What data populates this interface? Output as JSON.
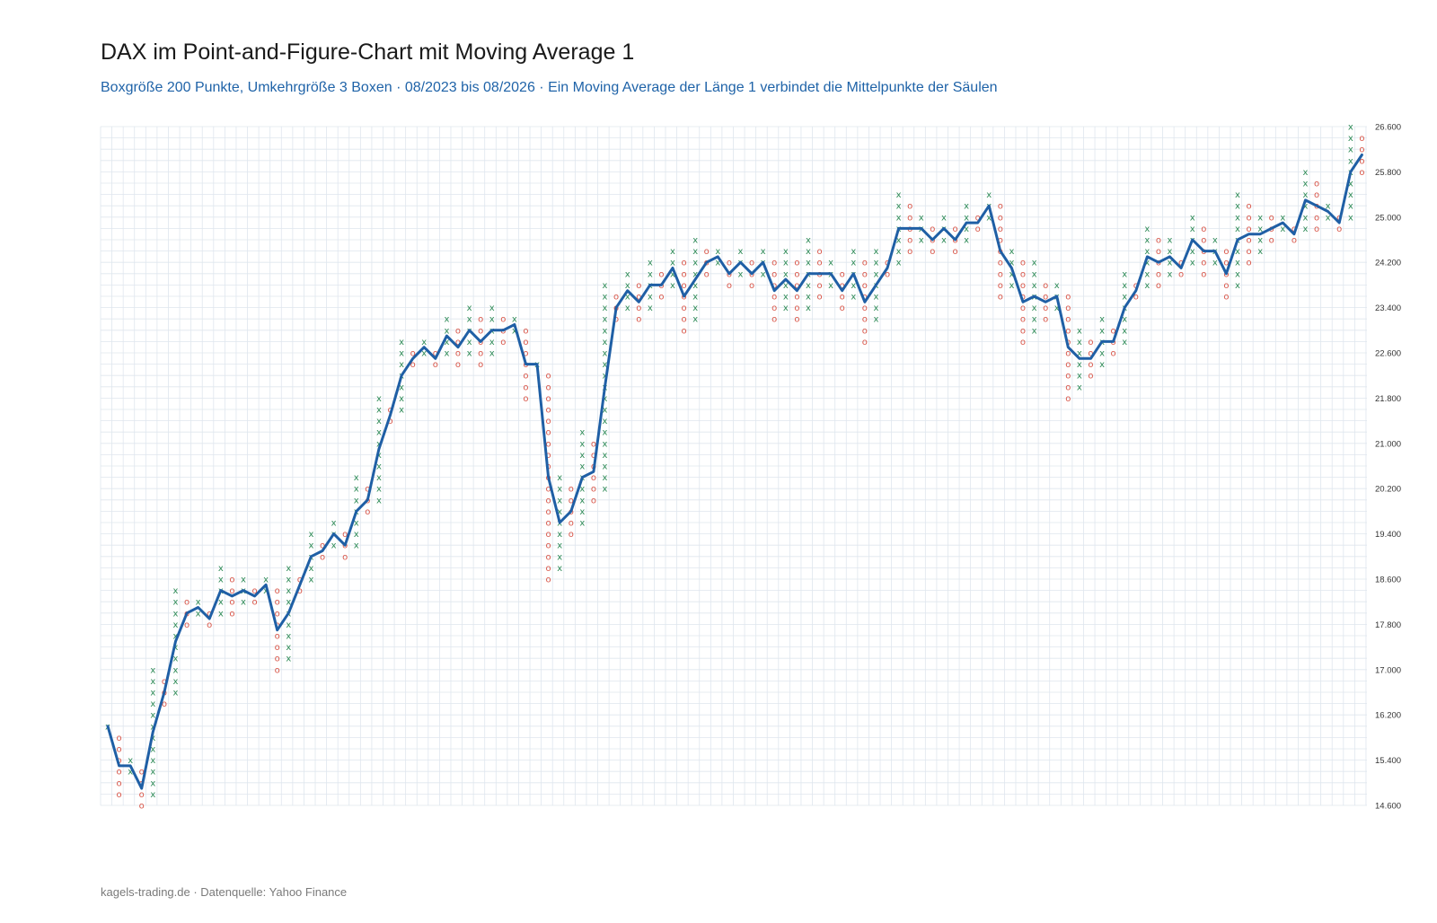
{
  "title": "DAX im Point-and-Figure-Chart mit Moving Average 1",
  "subtitle": "Boxgröße 200 Punkte, Umkehrgröße 3 Boxen · 08/2023 bis 08/2026 · Ein Moving Average der Länge 1 verbindet die Mittelpunkte der Säulen",
  "footer": "kagels-trading.de · Datenquelle: Yahoo Finance",
  "colors": {
    "x_mark": "#2e8b57",
    "o_mark": "#d9574a",
    "line": "#1f5fa5",
    "grid": "#dfe6ee"
  },
  "chart_data": {
    "type": "point-and-figure",
    "box_size": 200,
    "reversal_boxes": 3,
    "ylim": [
      14600,
      26600
    ],
    "y_ticks": [
      "14.600",
      "15.400",
      "16.200",
      "17.000",
      "17.800",
      "18.600",
      "19.400",
      "20.200",
      "21.000",
      "21.800",
      "22.600",
      "23.400",
      "24.200",
      "25.000",
      "25.800",
      "26.600"
    ],
    "y_axis_side": "right",
    "grid": true,
    "columns": [
      {
        "type": "X",
        "low": 16000,
        "high": 16000
      },
      {
        "type": "O",
        "low": 14800,
        "high": 15800
      },
      {
        "type": "X",
        "low": 15200,
        "high": 15400
      },
      {
        "type": "O",
        "low": 14600,
        "high": 15200
      },
      {
        "type": "X",
        "low": 14800,
        "high": 17000
      },
      {
        "type": "O",
        "low": 16400,
        "high": 16800
      },
      {
        "type": "X",
        "low": 16600,
        "high": 18400
      },
      {
        "type": "O",
        "low": 17800,
        "high": 18200
      },
      {
        "type": "X",
        "low": 18000,
        "high": 18200
      },
      {
        "type": "O",
        "low": 17800,
        "high": 18000
      },
      {
        "type": "X",
        "low": 18000,
        "high": 18800
      },
      {
        "type": "O",
        "low": 18000,
        "high": 18600
      },
      {
        "type": "X",
        "low": 18200,
        "high": 18600
      },
      {
        "type": "O",
        "low": 18200,
        "high": 18400
      },
      {
        "type": "X",
        "low": 18400,
        "high": 18600
      },
      {
        "type": "O",
        "low": 17000,
        "high": 18400
      },
      {
        "type": "X",
        "low": 17200,
        "high": 18800
      },
      {
        "type": "O",
        "low": 18400,
        "high": 18600
      },
      {
        "type": "X",
        "low": 18600,
        "high": 19400
      },
      {
        "type": "O",
        "low": 19000,
        "high": 19200
      },
      {
        "type": "X",
        "low": 19200,
        "high": 19600
      },
      {
        "type": "O",
        "low": 19000,
        "high": 19400
      },
      {
        "type": "X",
        "low": 19200,
        "high": 20400
      },
      {
        "type": "O",
        "low": 19800,
        "high": 20200
      },
      {
        "type": "X",
        "low": 20000,
        "high": 21800
      },
      {
        "type": "O",
        "low": 21400,
        "high": 21600
      },
      {
        "type": "X",
        "low": 21600,
        "high": 22800
      },
      {
        "type": "O",
        "low": 22400,
        "high": 22600
      },
      {
        "type": "X",
        "low": 22600,
        "high": 22800
      },
      {
        "type": "O",
        "low": 22400,
        "high": 22600
      },
      {
        "type": "X",
        "low": 22600,
        "high": 23200
      },
      {
        "type": "O",
        "low": 22400,
        "high": 23000
      },
      {
        "type": "X",
        "low": 22600,
        "high": 23400
      },
      {
        "type": "O",
        "low": 22400,
        "high": 23200
      },
      {
        "type": "X",
        "low": 22600,
        "high": 23400
      },
      {
        "type": "O",
        "low": 22800,
        "high": 23200
      },
      {
        "type": "X",
        "low": 23000,
        "high": 23200
      },
      {
        "type": "O",
        "low": 21800,
        "high": 23000
      },
      {
        "type": "X",
        "low": 22400,
        "high": 22400
      },
      {
        "type": "O",
        "low": 18600,
        "high": 22200
      },
      {
        "type": "X",
        "low": 18800,
        "high": 20400
      },
      {
        "type": "O",
        "low": 19400,
        "high": 20200
      },
      {
        "type": "X",
        "low": 19600,
        "high": 21200
      },
      {
        "type": "O",
        "low": 20000,
        "high": 21000
      },
      {
        "type": "X",
        "low": 20200,
        "high": 23800
      },
      {
        "type": "O",
        "low": 23200,
        "high": 23600
      },
      {
        "type": "X",
        "low": 23400,
        "high": 24000
      },
      {
        "type": "O",
        "low": 23200,
        "high": 23800
      },
      {
        "type": "X",
        "low": 23400,
        "high": 24200
      },
      {
        "type": "O",
        "low": 23600,
        "high": 24000
      },
      {
        "type": "X",
        "low": 23800,
        "high": 24400
      },
      {
        "type": "O",
        "low": 23000,
        "high": 24200
      },
      {
        "type": "X",
        "low": 23200,
        "high": 24600
      },
      {
        "type": "O",
        "low": 24000,
        "high": 24400
      },
      {
        "type": "X",
        "low": 24200,
        "high": 24400
      },
      {
        "type": "O",
        "low": 23800,
        "high": 24200
      },
      {
        "type": "X",
        "low": 24000,
        "high": 24400
      },
      {
        "type": "O",
        "low": 23800,
        "high": 24200
      },
      {
        "type": "X",
        "low": 24000,
        "high": 24400
      },
      {
        "type": "O",
        "low": 23200,
        "high": 24200
      },
      {
        "type": "X",
        "low": 23400,
        "high": 24400
      },
      {
        "type": "O",
        "low": 23200,
        "high": 24200
      },
      {
        "type": "X",
        "low": 23400,
        "high": 24600
      },
      {
        "type": "O",
        "low": 23600,
        "high": 24400
      },
      {
        "type": "X",
        "low": 23800,
        "high": 24200
      },
      {
        "type": "O",
        "low": 23400,
        "high": 24000
      },
      {
        "type": "X",
        "low": 23600,
        "high": 24400
      },
      {
        "type": "O",
        "low": 22800,
        "high": 24200
      },
      {
        "type": "X",
        "low": 23200,
        "high": 24400
      },
      {
        "type": "O",
        "low": 24000,
        "high": 24200
      },
      {
        "type": "X",
        "low": 24200,
        "high": 25400
      },
      {
        "type": "O",
        "low": 24400,
        "high": 25200
      },
      {
        "type": "X",
        "low": 24600,
        "high": 25000
      },
      {
        "type": "O",
        "low": 24400,
        "high": 24800
      },
      {
        "type": "X",
        "low": 24600,
        "high": 25000
      },
      {
        "type": "O",
        "low": 24400,
        "high": 24800
      },
      {
        "type": "X",
        "low": 24600,
        "high": 25200
      },
      {
        "type": "O",
        "low": 24800,
        "high": 25000
      },
      {
        "type": "X",
        "low": 25000,
        "high": 25400
      },
      {
        "type": "O",
        "low": 23600,
        "high": 25200
      },
      {
        "type": "X",
        "low": 23800,
        "high": 24400
      },
      {
        "type": "O",
        "low": 22800,
        "high": 24200
      },
      {
        "type": "X",
        "low": 23000,
        "high": 24200
      },
      {
        "type": "O",
        "low": 23200,
        "high": 23800
      },
      {
        "type": "X",
        "low": 23400,
        "high": 23800
      },
      {
        "type": "O",
        "low": 21800,
        "high": 23600
      },
      {
        "type": "X",
        "low": 22000,
        "high": 23000
      },
      {
        "type": "O",
        "low": 22200,
        "high": 22800
      },
      {
        "type": "X",
        "low": 22400,
        "high": 23200
      },
      {
        "type": "O",
        "low": 22600,
        "high": 23000
      },
      {
        "type": "X",
        "low": 22800,
        "high": 24000
      },
      {
        "type": "O",
        "low": 23600,
        "high": 23800
      },
      {
        "type": "X",
        "low": 23800,
        "high": 24800
      },
      {
        "type": "O",
        "low": 23800,
        "high": 24600
      },
      {
        "type": "X",
        "low": 24000,
        "high": 24600
      },
      {
        "type": "O",
        "low": 24000,
        "high": 24200
      },
      {
        "type": "X",
        "low": 24200,
        "high": 25000
      },
      {
        "type": "O",
        "low": 24000,
        "high": 24800
      },
      {
        "type": "X",
        "low": 24200,
        "high": 24600
      },
      {
        "type": "O",
        "low": 23600,
        "high": 24400
      },
      {
        "type": "X",
        "low": 23800,
        "high": 25400
      },
      {
        "type": "O",
        "low": 24200,
        "high": 25200
      },
      {
        "type": "X",
        "low": 24400,
        "high": 25000
      },
      {
        "type": "O",
        "low": 24600,
        "high": 25000
      },
      {
        "type": "X",
        "low": 24800,
        "high": 25000
      },
      {
        "type": "O",
        "low": 24600,
        "high": 24800
      },
      {
        "type": "X",
        "low": 24800,
        "high": 25800
      },
      {
        "type": "O",
        "low": 24800,
        "high": 25600
      },
      {
        "type": "X",
        "low": 25000,
        "high": 25200
      },
      {
        "type": "O",
        "low": 24800,
        "high": 25000
      },
      {
        "type": "X",
        "low": 25000,
        "high": 26600
      },
      {
        "type": "O",
        "low": 25800,
        "high": 26400
      }
    ]
  }
}
